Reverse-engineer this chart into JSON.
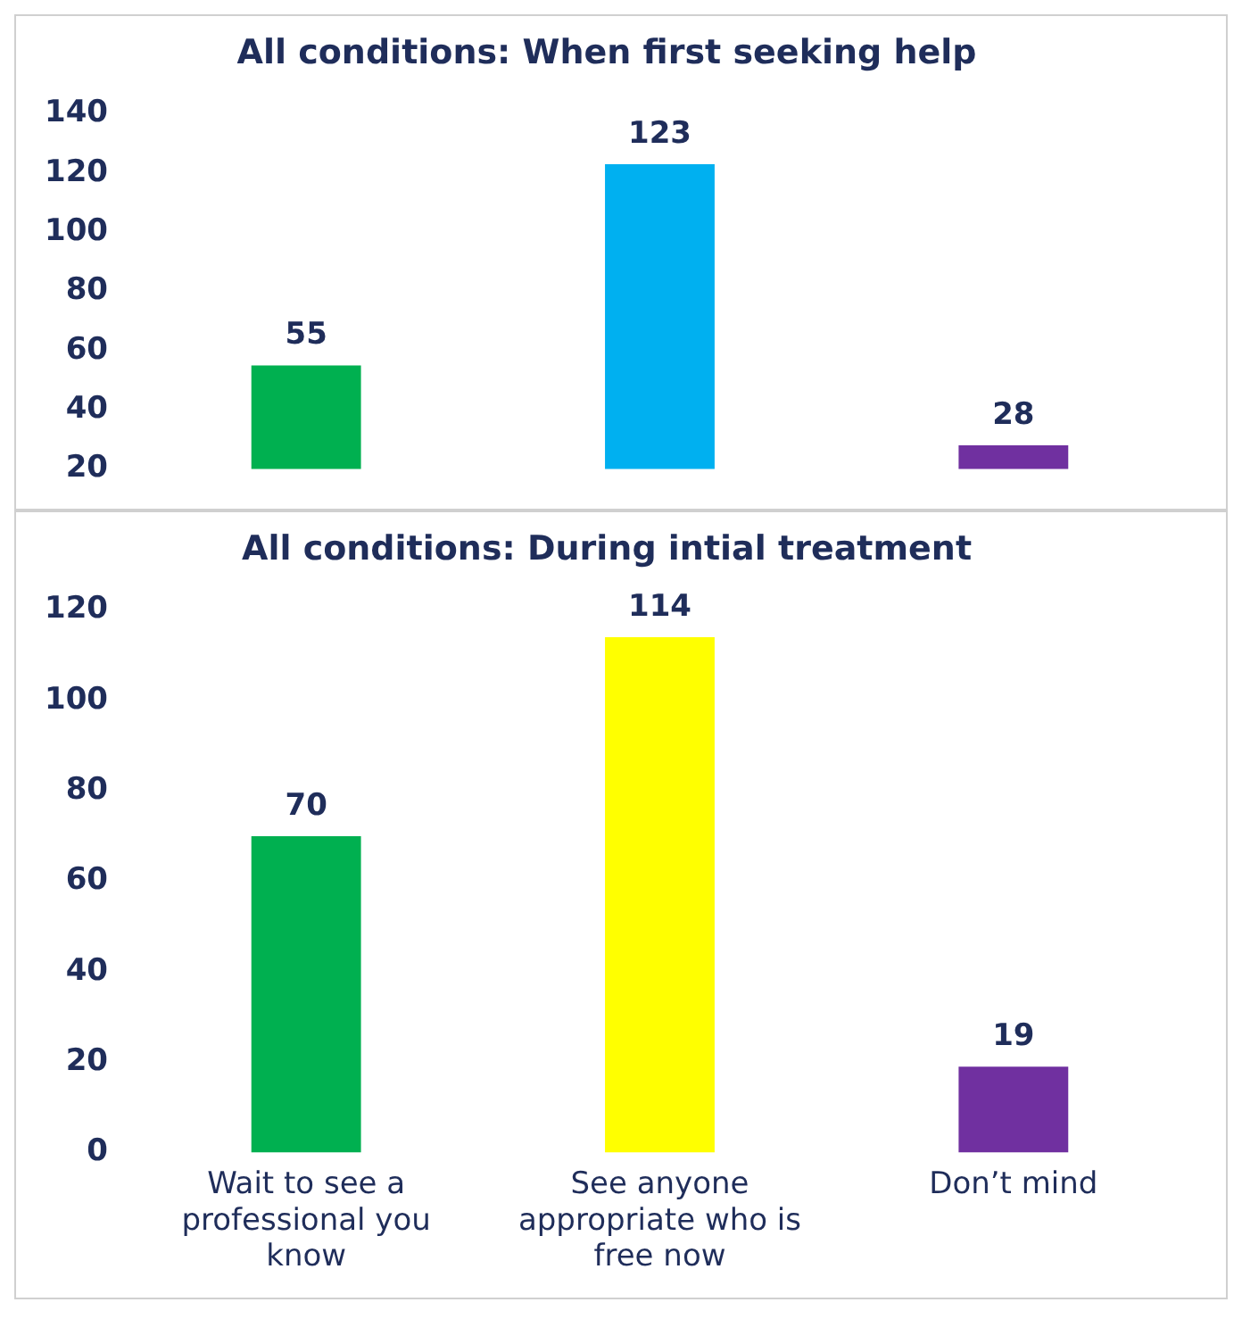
{
  "chart_data": [
    {
      "type": "bar",
      "title": "All conditions: When first seeking help",
      "categories": [
        null,
        null,
        null
      ],
      "values": [
        55,
        123,
        28
      ],
      "colors": [
        "#00b050",
        "#00b0f0",
        "#7030a0"
      ],
      "ylim": [
        20,
        140
      ],
      "yticks": [
        20,
        40,
        60,
        80,
        100,
        120,
        140
      ],
      "data_labels": true,
      "grid": false,
      "legend": false,
      "tick_labels": "y"
    },
    {
      "type": "bar",
      "title": "All conditions: During intial treatment",
      "categories": [
        "Wait to see a professional you know",
        "See anyone appropriate who is free now",
        "Don’t mind"
      ],
      "values": [
        70,
        114,
        19
      ],
      "colors": [
        "#00b050",
        "#ffff00",
        "#7030a0"
      ],
      "ylim": [
        0,
        120
      ],
      "yticks": [
        0,
        20,
        40,
        60,
        80,
        100,
        120
      ],
      "data_labels": true,
      "grid": false,
      "legend": false
    }
  ]
}
